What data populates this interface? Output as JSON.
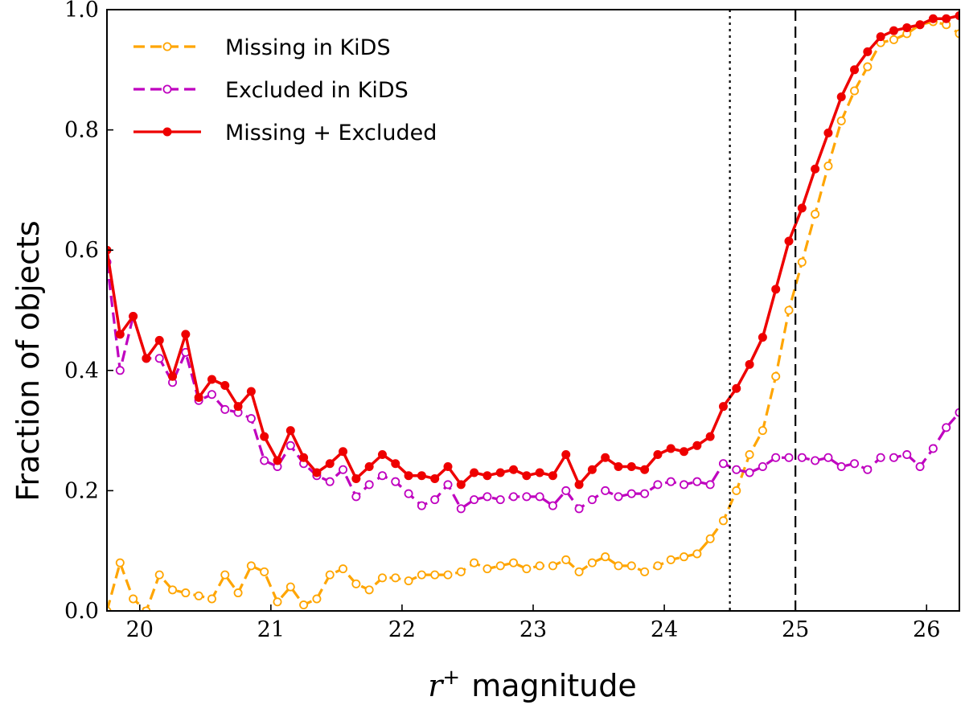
{
  "chart_data": {
    "type": "line",
    "xlabel_var": "r",
    "xlabel_sup": "+",
    "xlabel_rest": "magnitude",
    "ylabel": "Fraction of objects",
    "xlim": [
      19.75,
      26.25
    ],
    "ylim": [
      0.0,
      1.0
    ],
    "xticks": [
      20,
      21,
      22,
      23,
      24,
      25,
      26
    ],
    "xtick_labels": [
      "20",
      "21",
      "22",
      "23",
      "24",
      "25",
      "26"
    ],
    "yticks": [
      0.0,
      0.2,
      0.4,
      0.6,
      0.8,
      1.0
    ],
    "ytick_labels": [
      "0.0",
      "0.2",
      "0.4",
      "0.6",
      "0.8",
      "1.0"
    ],
    "grid": false,
    "legend_position": "top-left",
    "vlines": [
      {
        "x": 24.5,
        "style": "dotted"
      },
      {
        "x": 25.0,
        "style": "dashed"
      }
    ],
    "x": [
      19.75,
      19.85,
      19.95,
      20.05,
      20.15,
      20.25,
      20.35,
      20.45,
      20.55,
      20.65,
      20.75,
      20.85,
      20.95,
      21.05,
      21.15,
      21.25,
      21.35,
      21.45,
      21.55,
      21.65,
      21.75,
      21.85,
      21.95,
      22.05,
      22.15,
      22.25,
      22.35,
      22.45,
      22.55,
      22.65,
      22.75,
      22.85,
      22.95,
      23.05,
      23.15,
      23.25,
      23.35,
      23.45,
      23.55,
      23.65,
      23.75,
      23.85,
      23.95,
      24.05,
      24.15,
      24.25,
      24.35,
      24.45,
      24.55,
      24.65,
      24.75,
      24.85,
      24.95,
      25.05,
      25.15,
      25.25,
      25.35,
      25.45,
      25.55,
      25.65,
      25.75,
      25.85,
      25.95,
      26.05,
      26.15,
      26.25
    ],
    "series": [
      {
        "name": "Missing in KiDS",
        "color": "#FFA500",
        "style": "dashed",
        "marker": "open-circle",
        "values": [
          0.0,
          0.08,
          0.02,
          0.0,
          0.06,
          0.035,
          0.03,
          0.025,
          0.02,
          0.06,
          0.03,
          0.075,
          0.065,
          0.015,
          0.04,
          0.01,
          0.02,
          0.06,
          0.07,
          0.045,
          0.035,
          0.055,
          0.055,
          0.05,
          0.06,
          0.06,
          0.06,
          0.065,
          0.08,
          0.07,
          0.075,
          0.08,
          0.07,
          0.075,
          0.075,
          0.085,
          0.065,
          0.08,
          0.09,
          0.075,
          0.075,
          0.065,
          0.075,
          0.085,
          0.09,
          0.095,
          0.12,
          0.15,
          0.2,
          0.26,
          0.3,
          0.39,
          0.5,
          0.58,
          0.66,
          0.74,
          0.815,
          0.865,
          0.905,
          0.945,
          0.95,
          0.96,
          0.975,
          0.98,
          0.975,
          0.96
        ]
      },
      {
        "name": "Excluded in KiDS",
        "color": "#BF00BF",
        "style": "dashed",
        "marker": "open-circle",
        "values": [
          0.58,
          0.4,
          0.49,
          0.42,
          0.42,
          0.38,
          0.43,
          0.35,
          0.36,
          0.335,
          0.33,
          0.32,
          0.25,
          0.24,
          0.275,
          0.245,
          0.225,
          0.215,
          0.235,
          0.19,
          0.21,
          0.225,
          0.215,
          0.195,
          0.175,
          0.185,
          0.21,
          0.17,
          0.185,
          0.19,
          0.185,
          0.19,
          0.19,
          0.19,
          0.175,
          0.2,
          0.17,
          0.185,
          0.2,
          0.19,
          0.195,
          0.195,
          0.21,
          0.215,
          0.21,
          0.215,
          0.21,
          0.245,
          0.235,
          0.23,
          0.24,
          0.255,
          0.255,
          0.255,
          0.25,
          0.255,
          0.24,
          0.245,
          0.235,
          0.255,
          0.255,
          0.26,
          0.24,
          0.27,
          0.305,
          0.33
        ]
      },
      {
        "name": "Missing + Excluded",
        "color": "#EE0000",
        "style": "solid",
        "marker": "filled-circle",
        "values": [
          0.6,
          0.46,
          0.49,
          0.42,
          0.45,
          0.39,
          0.46,
          0.355,
          0.385,
          0.375,
          0.34,
          0.365,
          0.29,
          0.25,
          0.3,
          0.255,
          0.23,
          0.245,
          0.265,
          0.22,
          0.24,
          0.26,
          0.245,
          0.225,
          0.225,
          0.22,
          0.24,
          0.21,
          0.23,
          0.225,
          0.23,
          0.235,
          0.225,
          0.23,
          0.225,
          0.26,
          0.21,
          0.235,
          0.255,
          0.24,
          0.24,
          0.235,
          0.26,
          0.27,
          0.265,
          0.275,
          0.29,
          0.34,
          0.37,
          0.41,
          0.455,
          0.535,
          0.615,
          0.67,
          0.735,
          0.795,
          0.855,
          0.9,
          0.93,
          0.955,
          0.965,
          0.97,
          0.975,
          0.985,
          0.985,
          0.99
        ]
      }
    ]
  }
}
